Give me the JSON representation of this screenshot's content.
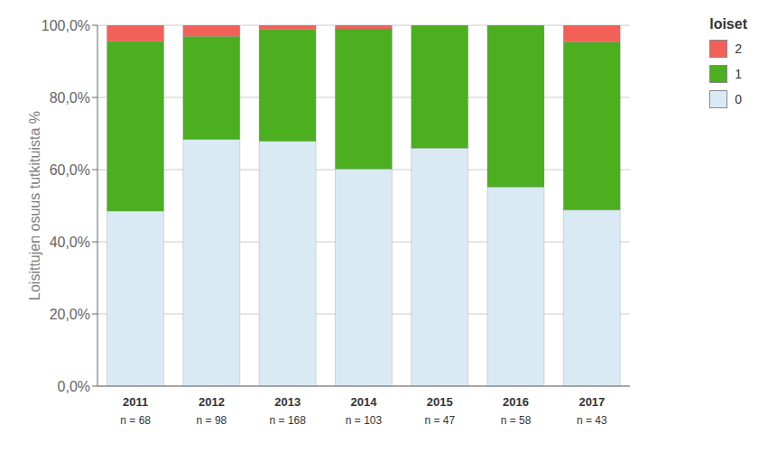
{
  "chart_data": {
    "type": "bar",
    "categories": [
      "2011",
      "2012",
      "2013",
      "2014",
      "2015",
      "2016",
      "2017"
    ],
    "series": [
      {
        "name": "0",
        "color": "#daeaf5",
        "values": [
          0.4853,
          0.6837,
          0.6786,
          0.6019,
          0.6596,
          0.5517,
          0.4884
        ]
      },
      {
        "name": "1",
        "color": "#4caf1f",
        "values": [
          0.4706,
          0.2857,
          0.3095,
          0.3883,
          0.3404,
          0.4483,
          0.4651
        ]
      },
      {
        "name": "2",
        "color": "#f26057",
        "values": [
          0.0441,
          0.0306,
          0.0119,
          0.0097,
          0.0,
          0.0,
          0.0465
        ]
      }
    ],
    "annotations": [
      {
        "x": "2011",
        "text": "n = 68"
      },
      {
        "x": "2012",
        "text": "n = 98"
      },
      {
        "x": "2013",
        "text": "n = 168"
      },
      {
        "x": "2014",
        "text": "n = 103"
      },
      {
        "x": "2015",
        "text": "n = 47"
      },
      {
        "x": "2016",
        "text": "n = 58"
      },
      {
        "x": "2017",
        "text": "n = 43"
      }
    ],
    "ylabel": "Loisittujen osuus tutkituista %",
    "legend_title": "loiset",
    "ylim": [
      0,
      1.0
    ],
    "yticks": [
      {
        "value": 0,
        "label": "0,0%"
      },
      {
        "value": 0.2,
        "label": "20,0%"
      },
      {
        "value": 0.4,
        "label": "40,0%"
      },
      {
        "value": 0.6,
        "label": "60,0%"
      },
      {
        "value": 0.8,
        "label": "80,0%"
      },
      {
        "value": 1.0,
        "label": "100,0%"
      }
    ],
    "grid": true,
    "stacked": true,
    "legend": "upper right"
  }
}
